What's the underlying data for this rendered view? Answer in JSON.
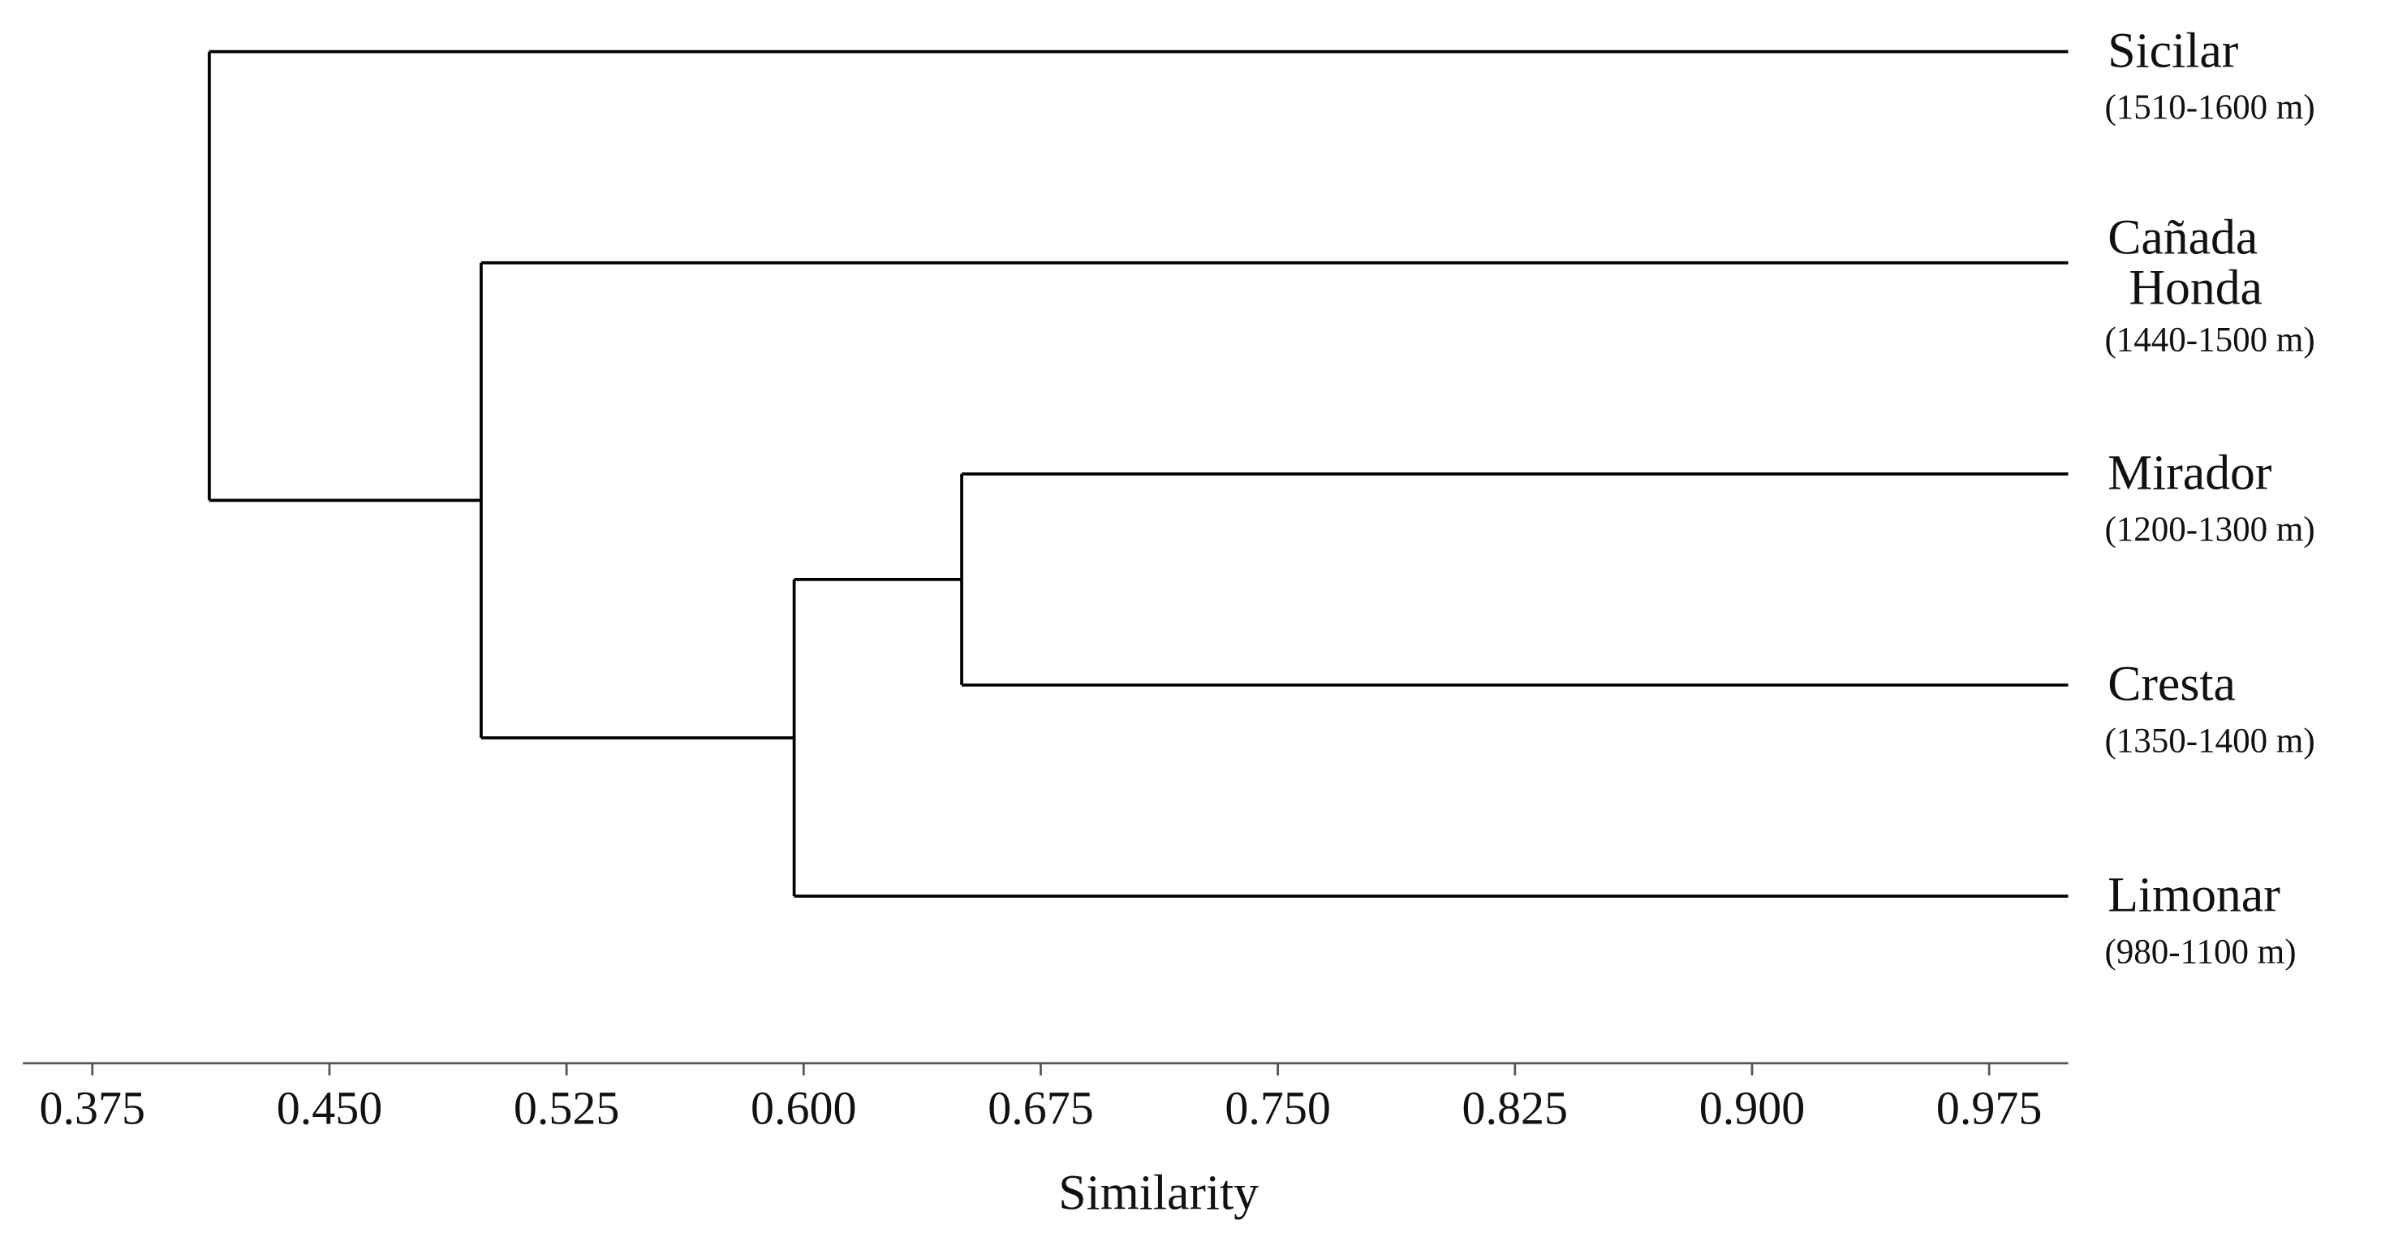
{
  "chart_data": {
    "type": "dendrogram",
    "x_label": "Similarity",
    "categories": [
      "Sicilar",
      "Cañada Honda",
      "Mirador",
      "Cresta",
      "Limonar"
    ],
    "subtitles": [
      "(1510-1600 m)",
      "(1440-1500 m)",
      "(1200-1300 m)",
      "(1350-1400 m)",
      "(980-1100 m)"
    ],
    "merges": [
      {
        "children": [
          2,
          3
        ],
        "value": 0.65
      },
      {
        "children": [
          5,
          4
        ],
        "value": 0.597
      },
      {
        "children": [
          1,
          6
        ],
        "value": 0.498
      },
      {
        "children": [
          0,
          7
        ],
        "value": 0.412
      }
    ],
    "xlim": [
      0.353,
      1.0
    ],
    "xticks": [
      0.375,
      {
        "value": 0.45,
        "label": "0.450"
      },
      0.525,
      {
        "value": 0.6,
        "label": "0.600"
      },
      0.675,
      {
        "value": 0.75,
        "label": "0.750"
      },
      0.825,
      {
        "value": 0.9,
        "label": "0.900"
      },
      0.975
    ],
    "color": "#000000"
  }
}
